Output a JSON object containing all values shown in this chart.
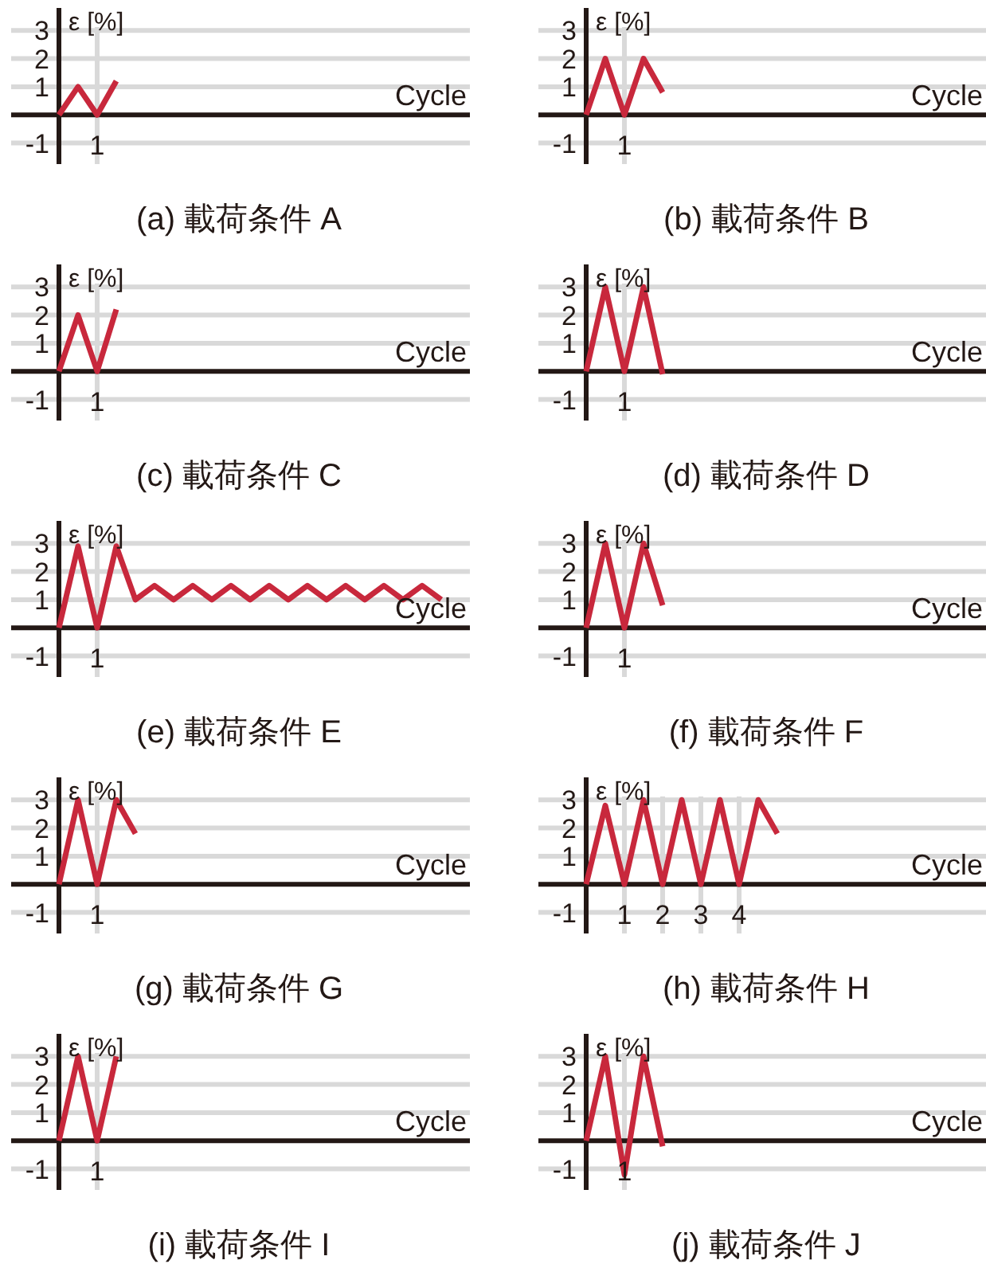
{
  "chart_data": [
    {
      "type": "line",
      "title": "(a) 載荷条件 A",
      "xlabel": "Cycle",
      "ylabel": "ε [%]",
      "ylim": [
        -1.75,
        3.8
      ],
      "yticks": [
        -1,
        1,
        2,
        3
      ],
      "grid": true,
      "color": "#c8283c",
      "categories": [
        null,
        null,
        null,
        null,
        "1",
        null,
        null,
        null,
        null,
        null,
        null,
        null,
        null,
        null,
        null,
        null,
        null,
        null,
        null,
        null,
        null,
        null,
        null,
        null
      ],
      "values": [
        null,
        null,
        0,
        1,
        0,
        1.2,
        null,
        null,
        null,
        null,
        null,
        null,
        null,
        null,
        null,
        null,
        null,
        null,
        null,
        null,
        null,
        null,
        null,
        null
      ]
    },
    {
      "type": "line",
      "title": "(b) 載荷条件 B",
      "xlabel": "Cycle",
      "ylabel": "ε [%]",
      "ylim": [
        -1.75,
        3.8
      ],
      "yticks": [
        -1,
        1,
        2,
        3
      ],
      "grid": true,
      "color": "#c8283c",
      "categories": [
        null,
        null,
        null,
        null,
        "1",
        null,
        null,
        null,
        null,
        null,
        null,
        null,
        null,
        null,
        null,
        null,
        null,
        null,
        null,
        null,
        null,
        null,
        null,
        null
      ],
      "values": [
        null,
        null,
        0,
        2,
        0,
        2,
        0.8,
        null,
        null,
        null,
        null,
        null,
        null,
        null,
        null,
        null,
        null,
        null,
        null,
        null,
        null,
        null,
        null,
        null
      ]
    },
    {
      "type": "line",
      "title": "(c) 載荷条件 C",
      "xlabel": "Cycle",
      "ylabel": "ε [%]",
      "ylim": [
        -1.75,
        3.8
      ],
      "yticks": [
        -1,
        1,
        2,
        3
      ],
      "grid": true,
      "color": "#c8283c",
      "categories": [
        null,
        null,
        null,
        null,
        "1",
        null,
        null,
        null,
        null,
        null,
        null,
        null,
        null,
        null,
        null,
        null,
        null,
        null,
        null,
        null,
        null,
        null,
        null,
        null
      ],
      "values": [
        null,
        null,
        0,
        2,
        0,
        2.2,
        null,
        null,
        null,
        null,
        null,
        null,
        null,
        null,
        null,
        null,
        null,
        null,
        null,
        null,
        null,
        null,
        null,
        null
      ]
    },
    {
      "type": "line",
      "title": "(d) 載荷条件 D",
      "xlabel": "Cycle",
      "ylabel": "ε [%]",
      "ylim": [
        -1.75,
        3.8
      ],
      "yticks": [
        -1,
        1,
        2,
        3
      ],
      "grid": true,
      "color": "#c8283c",
      "categories": [
        null,
        null,
        null,
        null,
        "1",
        null,
        null,
        null,
        null,
        null,
        null,
        null,
        null,
        null,
        null,
        null,
        null,
        null,
        null,
        null,
        null,
        null,
        null,
        null
      ],
      "values": [
        null,
        null,
        0,
        3,
        0,
        3,
        -0.1,
        null,
        null,
        null,
        null,
        null,
        null,
        null,
        null,
        null,
        null,
        null,
        null,
        null,
        null,
        null,
        null,
        null
      ]
    },
    {
      "type": "line",
      "title": "(e) 載荷条件 E",
      "xlabel": "Cycle",
      "ylabel": "ε [%]",
      "ylim": [
        -1.75,
        3.8
      ],
      "yticks": [
        -1,
        1,
        2,
        3
      ],
      "grid": true,
      "color": "#c8283c",
      "categories": [
        null,
        null,
        null,
        null,
        "1",
        null,
        null,
        null,
        null,
        null,
        null,
        null,
        null,
        null,
        null,
        null,
        null,
        null,
        null,
        null,
        null,
        null,
        null,
        null
      ],
      "values": [
        null,
        null,
        0,
        2.9,
        0,
        2.9,
        1,
        1.5,
        1,
        1.5,
        1,
        1.5,
        1,
        1.5,
        1,
        1.5,
        1,
        1.5,
        1,
        1.5,
        1,
        1.5,
        1,
        null
      ]
    },
    {
      "type": "line",
      "title": "(f) 載荷条件 F",
      "xlabel": "Cycle",
      "ylabel": "ε [%]",
      "ylim": [
        -1.75,
        3.8
      ],
      "yticks": [
        -1,
        1,
        2,
        3
      ],
      "grid": true,
      "color": "#c8283c",
      "categories": [
        null,
        null,
        null,
        null,
        "1",
        null,
        null,
        null,
        null,
        null,
        null,
        null,
        null,
        null,
        null,
        null,
        null,
        null,
        null,
        null,
        null,
        null,
        null,
        null
      ],
      "values": [
        null,
        null,
        0,
        3,
        0,
        3,
        0.8,
        null,
        null,
        null,
        null,
        null,
        null,
        null,
        null,
        null,
        null,
        null,
        null,
        null,
        null,
        null,
        null,
        null
      ]
    },
    {
      "type": "line",
      "title": "(g) 載荷条件 G",
      "xlabel": "Cycle",
      "ylabel": "ε [%]",
      "ylim": [
        -1.75,
        3.8
      ],
      "yticks": [
        -1,
        1,
        2,
        3
      ],
      "grid": true,
      "color": "#c8283c",
      "categories": [
        null,
        null,
        null,
        null,
        "1",
        null,
        null,
        null,
        null,
        null,
        null,
        null,
        null,
        null,
        null,
        null,
        null,
        null,
        null,
        null,
        null,
        null,
        null,
        null
      ],
      "values": [
        null,
        null,
        0,
        3,
        0,
        3,
        1.8,
        null,
        null,
        null,
        null,
        null,
        null,
        null,
        null,
        null,
        null,
        null,
        null,
        null,
        null,
        null,
        null,
        null
      ]
    },
    {
      "type": "line",
      "title": "(h) 載荷条件 H",
      "xlabel": "Cycle",
      "ylabel": "ε [%]",
      "ylim": [
        -1.75,
        3.8
      ],
      "yticks": [
        -1,
        1,
        2,
        3
      ],
      "grid": true,
      "color": "#c8283c",
      "categories": [
        null,
        null,
        null,
        null,
        "1",
        null,
        "2",
        null,
        "3",
        null,
        "4",
        null,
        null,
        null,
        null,
        null,
        null,
        null,
        null,
        null,
        null,
        null,
        null,
        null
      ],
      "values": [
        null,
        null,
        0,
        2.8,
        0,
        3,
        0,
        3,
        0,
        3,
        0,
        3,
        1.8,
        null,
        null,
        null,
        null,
        null,
        null,
        null,
        null,
        null,
        null,
        null
      ]
    },
    {
      "type": "line",
      "title": "(i) 載荷条件 I",
      "xlabel": "Cycle",
      "ylabel": "ε [%]",
      "ylim": [
        -1.75,
        3.8
      ],
      "yticks": [
        -1,
        1,
        2,
        3
      ],
      "grid": true,
      "color": "#c8283c",
      "categories": [
        null,
        null,
        null,
        null,
        "1",
        null,
        null,
        null,
        null,
        null,
        null,
        null,
        null,
        null,
        null,
        null,
        null,
        null,
        null,
        null,
        null,
        null,
        null,
        null
      ],
      "values": [
        null,
        null,
        0,
        3,
        0,
        3,
        null,
        null,
        null,
        null,
        null,
        null,
        null,
        null,
        null,
        null,
        null,
        null,
        null,
        null,
        null,
        null,
        null,
        null
      ]
    },
    {
      "type": "line",
      "title": "(j) 載荷条件 J",
      "xlabel": "Cycle",
      "ylabel": "ε [%]",
      "ylim": [
        -1.75,
        3.8
      ],
      "yticks": [
        -1,
        1,
        2,
        3
      ],
      "grid": true,
      "color": "#c8283c",
      "categories": [
        null,
        null,
        null,
        null,
        "1",
        null,
        null,
        null,
        null,
        null,
        null,
        null,
        null,
        null,
        null,
        null,
        null,
        null,
        null,
        null,
        null,
        null,
        null,
        null
      ],
      "values": [
        null,
        null,
        0,
        3,
        -1.2,
        3,
        -0.2,
        null,
        null,
        null,
        null,
        null,
        null,
        null,
        null,
        null,
        null,
        null,
        null,
        null,
        null,
        null,
        null,
        null
      ]
    }
  ]
}
